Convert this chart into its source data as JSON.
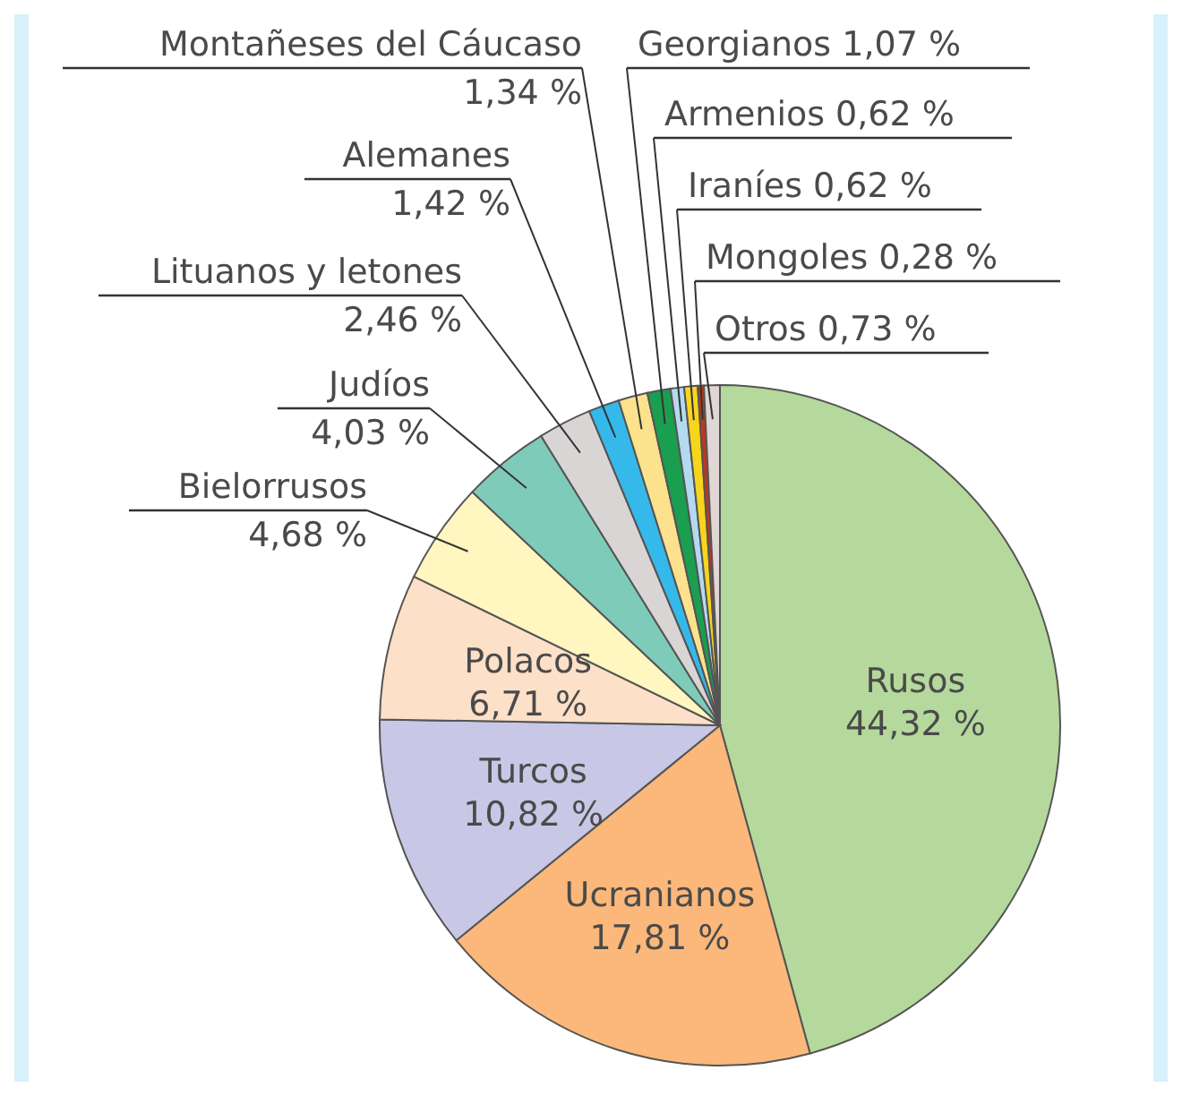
{
  "chart_data": {
    "type": "pie",
    "categories": [
      "Rusos",
      "Ucranianos",
      "Turcos",
      "Polacos",
      "Bielorrusos",
      "Judíos",
      "Lituanos y letones",
      "Alemanes",
      "Montañeses del Cáucaso",
      "Georgianos",
      "Armenios",
      "Iraníes",
      "Mongoles",
      "Otros"
    ],
    "values": [
      44.32,
      17.81,
      10.82,
      6.71,
      4.68,
      4.03,
      2.46,
      1.42,
      1.34,
      1.07,
      0.62,
      0.62,
      0.28,
      0.73
    ],
    "colors": [
      "#b5d99c",
      "#fbb87a",
      "#c8c8e6",
      "#fde0c8",
      "#fff6c0",
      "#7fcbb9",
      "#d9d5d5",
      "#35b9ea",
      "#fde28e",
      "#1a9e50",
      "#b3daf0",
      "#f7d51d",
      "#c0361a",
      "#e0d6d6"
    ],
    "value_labels": [
      "44,32 %",
      "17,81 %",
      "10,82 %",
      "6,71 %",
      "4,68 %",
      "4,03 %",
      "2,46 %",
      "1,42 %",
      "1,34 %",
      "1,07 %",
      "0,62 %",
      "0,62 %",
      "0,28 %",
      "0,73 %"
    ]
  }
}
